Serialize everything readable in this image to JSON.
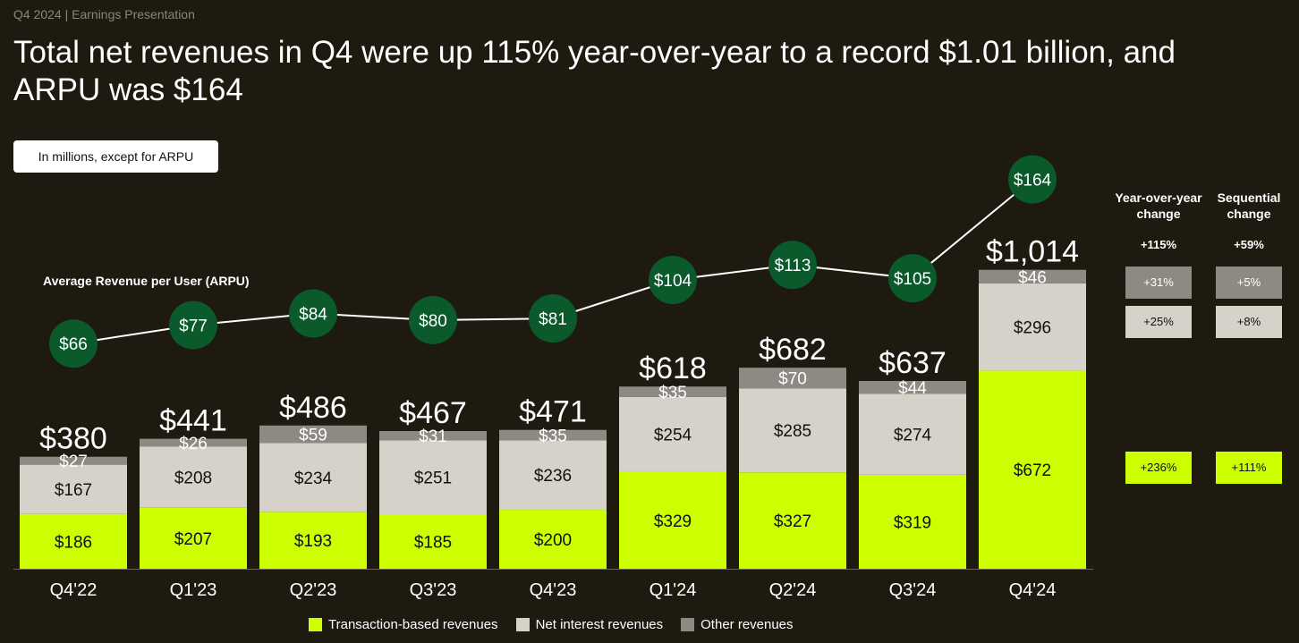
{
  "header": "Q4 2024 | Earnings Presentation",
  "title": "Total net revenues in Q4 were up 115% year-over-year to a record $1.01 billion, and ARPU was $164",
  "units_note": "In millions, except for ARPU",
  "arpu_label": "Average Revenue per User (ARPU)",
  "colors": {
    "background": "#1f1a10",
    "transaction": "#ccff00",
    "net_interest": "#d6d2ca",
    "other": "#8c8a83",
    "arpu_dot": "#0b5a2c"
  },
  "chart_data": {
    "type": "bar",
    "stacked": true,
    "categories": [
      "Q4'22",
      "Q1'23",
      "Q2'23",
      "Q3'23",
      "Q4'23",
      "Q1'24",
      "Q2'24",
      "Q3'24",
      "Q4'24"
    ],
    "series": [
      {
        "name": "Transaction-based revenues",
        "values": [
          186,
          207,
          193,
          185,
          200,
          329,
          327,
          319,
          672
        ],
        "labels": [
          "$186",
          "$207",
          "$193",
          "$185",
          "$200",
          "$329",
          "$327",
          "$319",
          "$672"
        ]
      },
      {
        "name": "Net interest revenues",
        "values": [
          167,
          208,
          234,
          251,
          236,
          254,
          285,
          274,
          296
        ],
        "labels": [
          "$167",
          "$208",
          "$234",
          "$251",
          "$236",
          "$254",
          "$285",
          "$274",
          "$296"
        ]
      },
      {
        "name": "Other revenues",
        "values": [
          27,
          26,
          59,
          31,
          35,
          35,
          70,
          44,
          46
        ],
        "labels": [
          "$27",
          "$26",
          "$59",
          "$31",
          "$35",
          "$35",
          "$70",
          "$44",
          "$46"
        ]
      }
    ],
    "totals": [
      380,
      441,
      486,
      467,
      471,
      618,
      682,
      637,
      1014
    ],
    "total_labels": [
      "$380",
      "$441",
      "$486",
      "$467",
      "$471",
      "$618",
      "$682",
      "$637",
      "$1,014"
    ],
    "arpu": {
      "name": "Average Revenue per User (ARPU)",
      "type": "line",
      "values": [
        66,
        77,
        84,
        80,
        81,
        104,
        113,
        105,
        164
      ],
      "labels": [
        "$66",
        "$77",
        "$84",
        "$80",
        "$81",
        "$104",
        "$113",
        "$105",
        "$164"
      ]
    },
    "legend_position": "bottom-center",
    "grid": false
  },
  "changes": {
    "headers": {
      "yoy": "Year-over-year change",
      "seq": "Sequential change"
    },
    "total": {
      "yoy": "+115%",
      "seq": "+59%"
    },
    "other": {
      "yoy": "+31%",
      "seq": "+5%"
    },
    "net_interest": {
      "yoy": "+25%",
      "seq": "+8%"
    },
    "transaction": {
      "yoy": "+236%",
      "seq": "+111%"
    }
  },
  "legend": [
    {
      "label": "Transaction-based revenues",
      "color": "#ccff00"
    },
    {
      "label": "Net interest revenues",
      "color": "#d6d2ca"
    },
    {
      "label": "Other revenues",
      "color": "#8c8a83"
    }
  ]
}
